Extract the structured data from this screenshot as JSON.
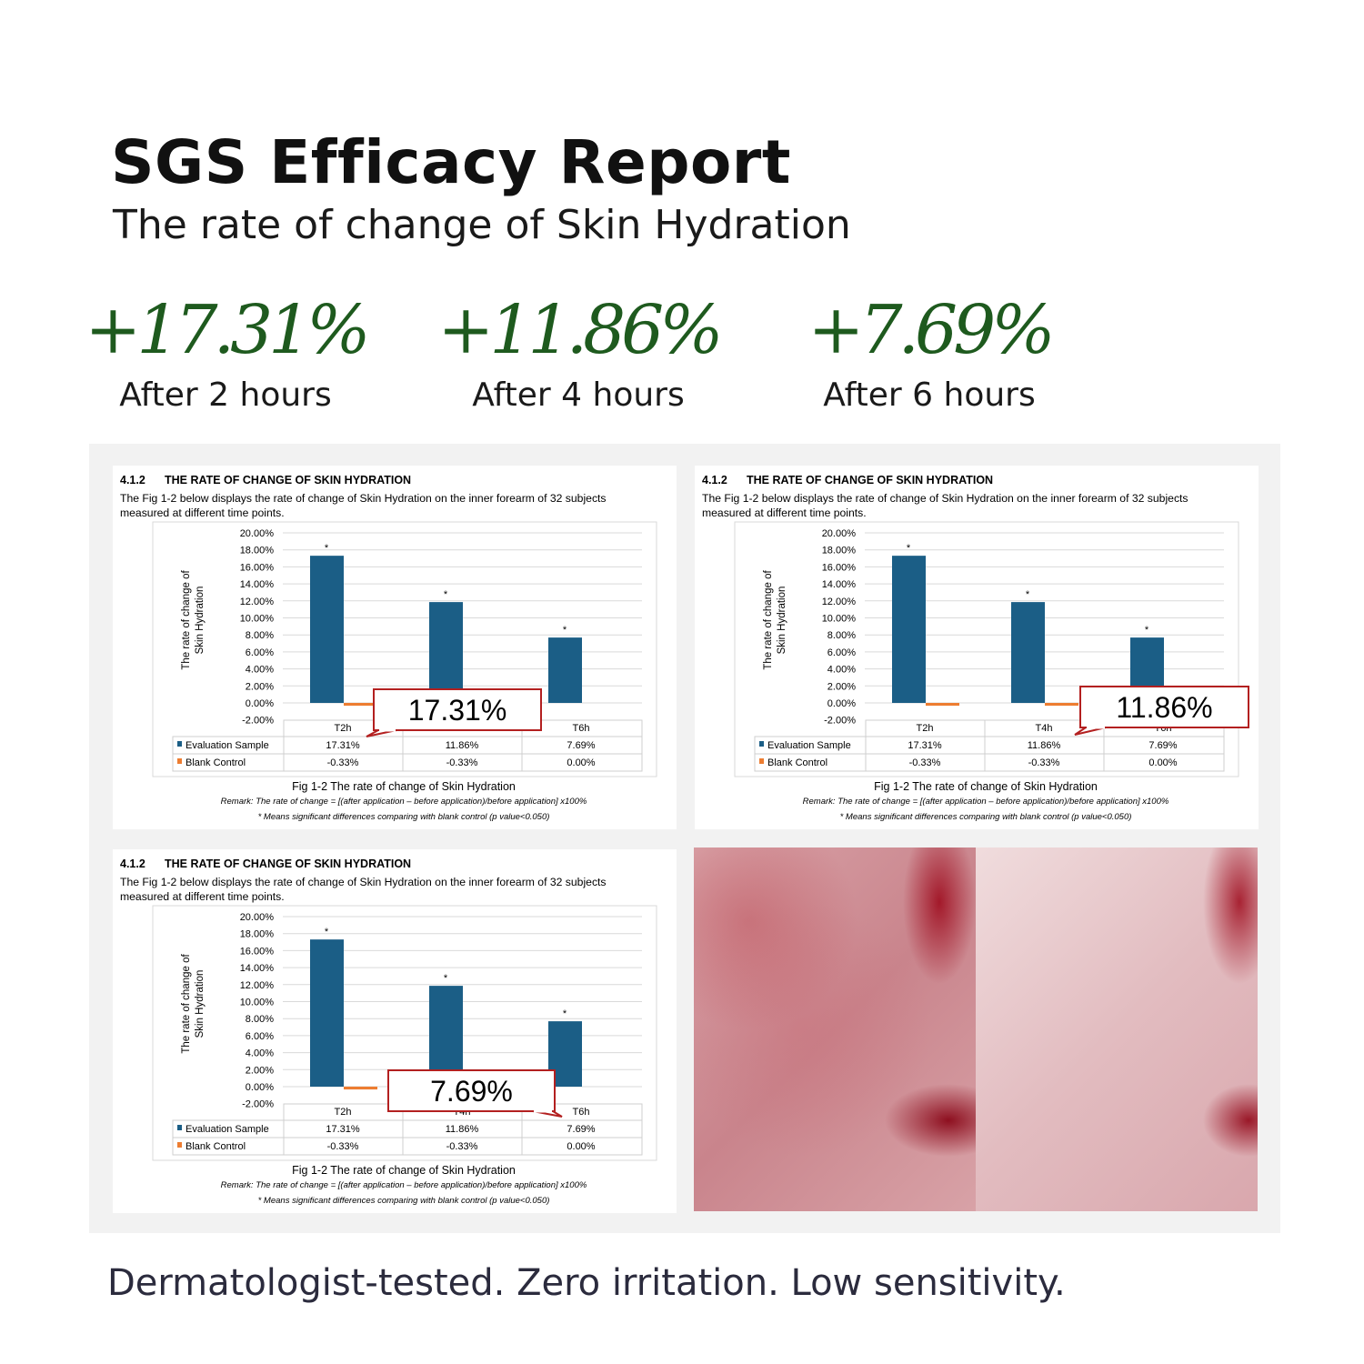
{
  "header": {
    "title": "SGS Efficacy Report",
    "subtitle": "The rate of change of Skin Hydration"
  },
  "stats": [
    {
      "value": "+17.31%",
      "caption": "After 2 hours"
    },
    {
      "value": "+11.86%",
      "caption": "After 4 hours"
    },
    {
      "value": "+7.69%",
      "caption": "After 6 hours"
    }
  ],
  "report": {
    "section": "4.1.2",
    "heading": "THE RATE OF CHANGE OF SKIN HYDRATION",
    "desc_line1": "The Fig 1-2 below displays the rate of change of Skin Hydration on the inner forearm of 32 subjects",
    "desc_line2": "measured at different time points.",
    "caption": "Fig 1-2 The rate of change of Skin Hydration",
    "remark": "Remark: The rate of change = [(after application – before application)/before application] x100%",
    "note": "* Means significant differences comparing with blank control (p value<0.050)"
  },
  "callouts": [
    "17.31%",
    "11.86%",
    "7.69%"
  ],
  "chart_data": {
    "type": "bar",
    "categories": [
      "T2h",
      "T4h",
      "T6h"
    ],
    "ylabel": "The rate of change of Skin Hydration",
    "ylim": [
      -2,
      20
    ],
    "yticks": [
      "20.00%",
      "18.00%",
      "16.00%",
      "14.00%",
      "12.00%",
      "10.00%",
      "8.00%",
      "6.00%",
      "4.00%",
      "2.00%",
      "0.00%",
      "-2.00%"
    ],
    "grid": true,
    "legend": "table-bottom",
    "significance_marker": "*",
    "series": [
      {
        "name": "Evaluation Sample",
        "values": [
          17.31,
          11.86,
          7.69
        ],
        "labels": [
          "17.31%",
          "11.86%",
          "7.69%"
        ],
        "color": "#1b5e86"
      },
      {
        "name": "Blank Control",
        "values": [
          -0.33,
          -0.33,
          0.0
        ],
        "labels": [
          "-0.33%",
          "-0.33%",
          "0.00%"
        ],
        "color": "#ed7d31"
      }
    ]
  },
  "footer": "Dermatologist-tested. Zero irritation. Low sensitivity.",
  "colors": {
    "accent_green": "#1e5a1e",
    "callout_border": "#b32020",
    "panel_bg": "#f2f2f2"
  }
}
